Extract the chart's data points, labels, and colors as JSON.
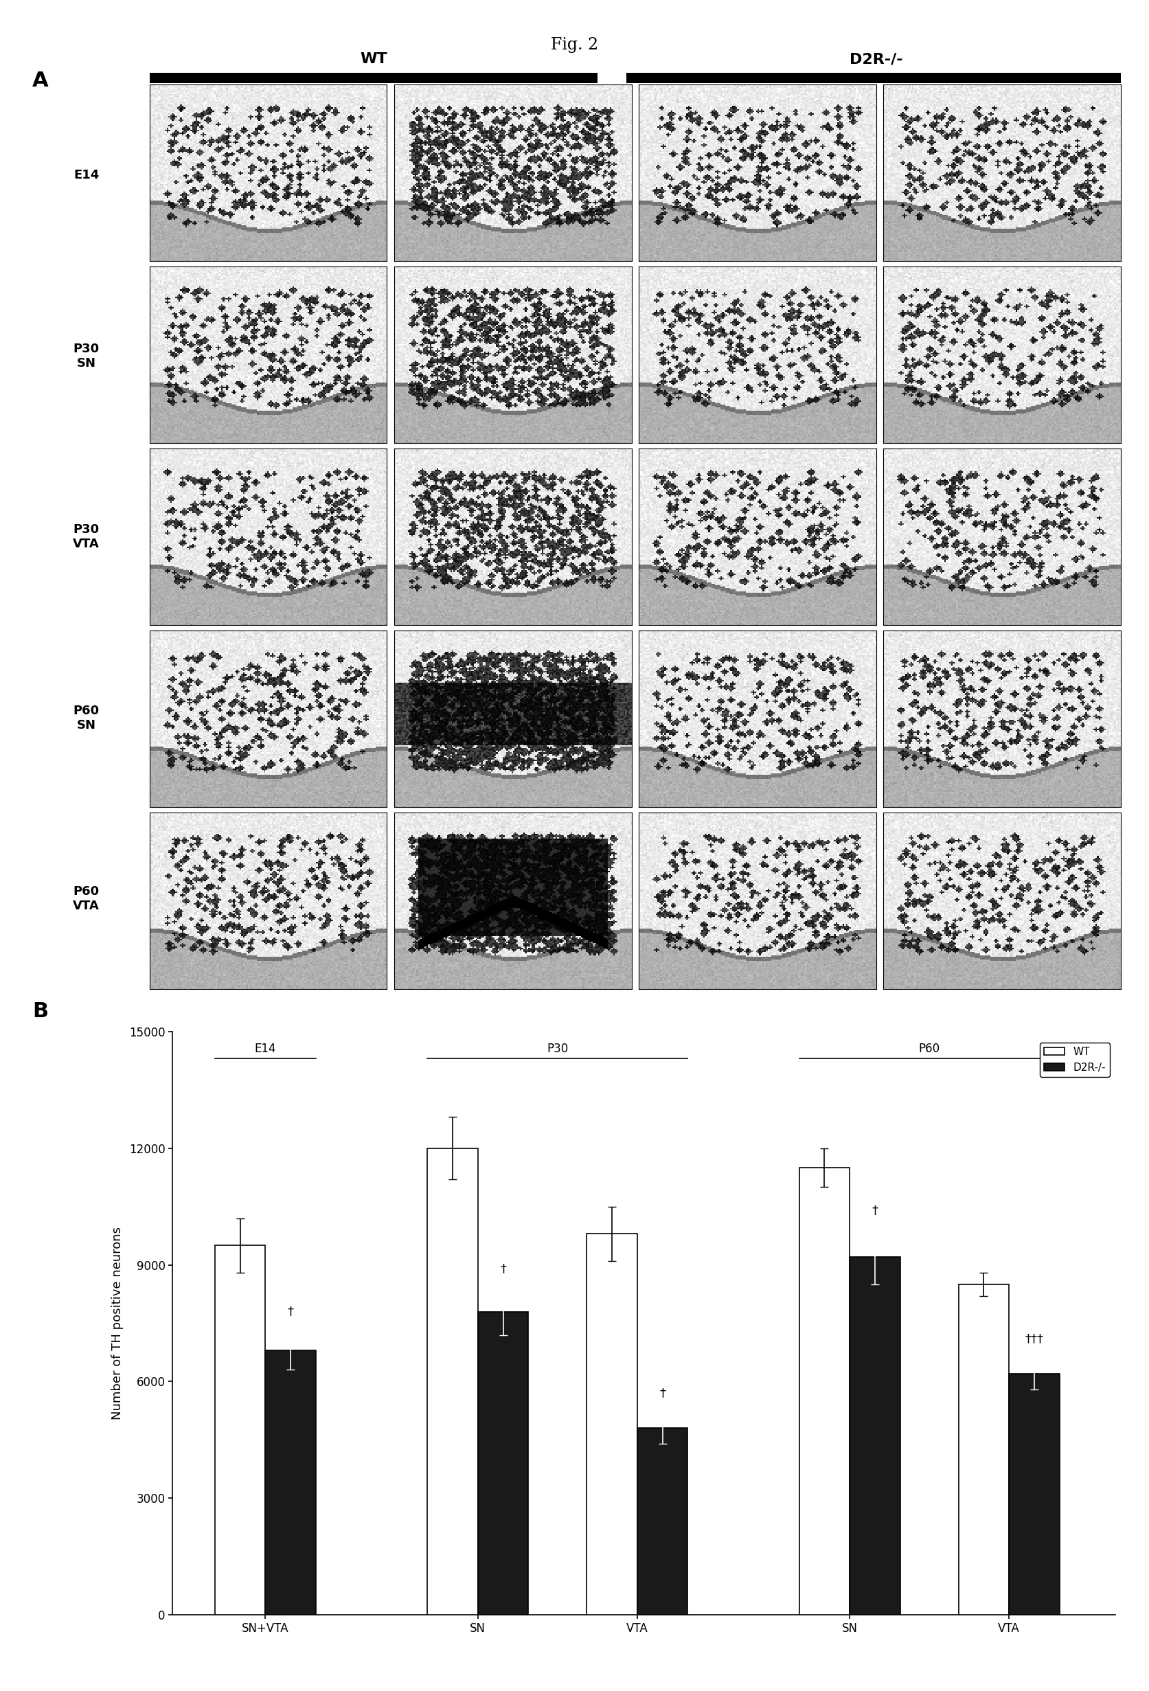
{
  "figure_title": "Fig. 2",
  "panel_A_label": "A",
  "panel_B_label": "B",
  "row_labels": [
    "E14",
    "P30\nSN",
    "P30\nVTA",
    "P60\nSN",
    "P60\nVTA"
  ],
  "col_labels_wt": "WT",
  "col_labels_d2r": "D2R-/-",
  "bar_groups": [
    {
      "label": "SN+VTA",
      "group": "E14",
      "wt": 9500,
      "wt_err": 700,
      "d2r": 6800,
      "d2r_err": 500,
      "d2r_sig": "†"
    },
    {
      "label": "SN",
      "group": "P30",
      "wt": 12000,
      "wt_err": 800,
      "d2r": 7800,
      "d2r_err": 600,
      "d2r_sig": "†"
    },
    {
      "label": "VTA",
      "group": "P30",
      "wt": 9800,
      "wt_err": 700,
      "d2r": 4800,
      "d2r_err": 400,
      "d2r_sig": "†"
    },
    {
      "label": "SN",
      "group": "P60",
      "wt": 11500,
      "wt_err": 500,
      "d2r": 9200,
      "d2r_err": 700,
      "d2r_sig": "†"
    },
    {
      "label": "VTA",
      "group": "P60",
      "wt": 8500,
      "wt_err": 300,
      "d2r": 6200,
      "d2r_err": 400,
      "d2r_sig": "†††"
    }
  ],
  "ylabel": "Number of TH positive neurons",
  "ylim": [
    0,
    15000
  ],
  "yticks": [
    0,
    3000,
    6000,
    9000,
    12000,
    15000
  ],
  "bar_width": 0.38,
  "wt_color": "#ffffff",
  "d2r_color": "#1a1a1a",
  "bar_edge_color": "#000000",
  "background_color": "#ffffff",
  "legend_wt": "WT",
  "legend_d2r": "D2R-/-",
  "font_size_title": 17,
  "font_size_labels": 13,
  "font_size_ticks": 12,
  "font_size_panel": 22,
  "x_centers": [
    0.5,
    2.1,
    3.3,
    4.9,
    6.1
  ],
  "xlim": [
    -0.2,
    6.9
  ]
}
